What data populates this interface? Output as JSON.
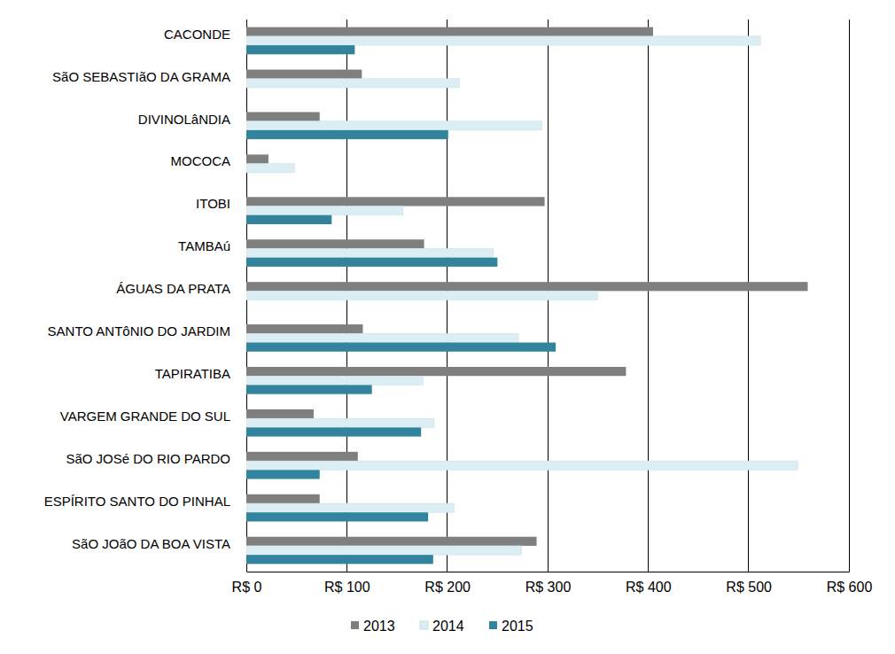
{
  "chart_data": {
    "type": "bar",
    "orientation": "horizontal",
    "grid": true,
    "legend": "bottom",
    "categories": [
      "CACONDE",
      "SãO SEBASTIãO DA GRAMA",
      "DIVINOLâNDIA",
      "MOCOCA",
      "ITOBI",
      "TAMBAú",
      "ÁGUAS DA PRATA",
      "SANTO ANTôNIO DO JARDIM",
      "TAPIRATIBA",
      "VARGEM GRANDE DO SUL",
      "SãO JOSé DO RIO PARDO",
      "ESPÍRITO SANTO DO PINHAL",
      "SãO JOãO DA BOA VISTA"
    ],
    "series": [
      {
        "name": "2013",
        "color": "#7f7f7f",
        "values": [
          405,
          115,
          73,
          22,
          297,
          177,
          559,
          116,
          378,
          67,
          111,
          73,
          289
        ]
      },
      {
        "name": "2014",
        "color": "#dbeef3",
        "values": [
          512,
          212,
          294,
          48,
          156,
          246,
          350,
          271,
          176,
          187,
          549,
          207,
          274
        ]
      },
      {
        "name": "2015",
        "color": "#31849b",
        "values": [
          108,
          null,
          201,
          null,
          85,
          250,
          null,
          308,
          125,
          174,
          73,
          181,
          186
        ]
      }
    ],
    "xlim": [
      0,
      600
    ],
    "xticks": [
      {
        "value": 0,
        "label": "R$ 0"
      },
      {
        "value": 100,
        "label": "R$ 100"
      },
      {
        "value": 200,
        "label": "R$ 200"
      },
      {
        "value": 300,
        "label": "R$ 300"
      },
      {
        "value": 400,
        "label": "R$ 400"
      },
      {
        "value": 500,
        "label": "R$ 500"
      },
      {
        "value": 600,
        "label": "R$ 600"
      }
    ]
  }
}
